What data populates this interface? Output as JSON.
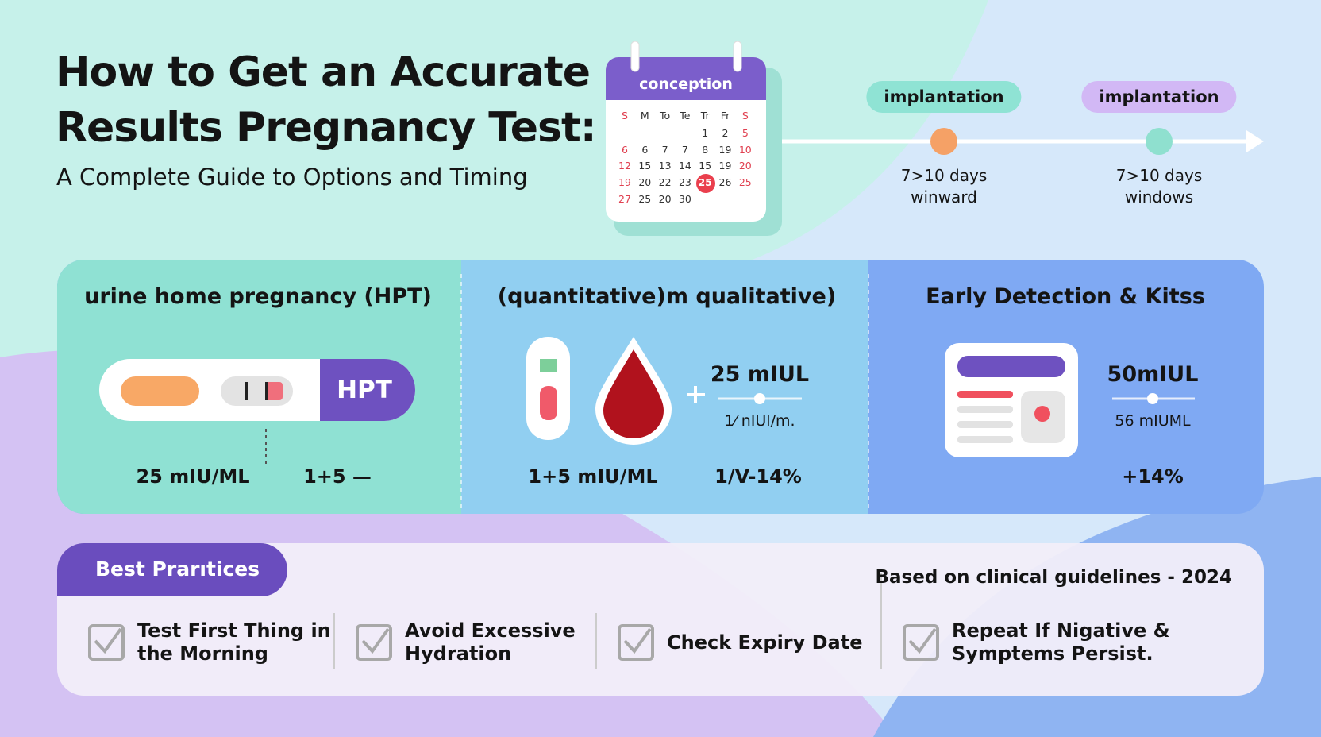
{
  "header": {
    "title_lines": [
      "How to Get an Accurate",
      "Results Pregnancy Test:"
    ],
    "subtitle": "A Complete Guide to Options and Timing"
  },
  "calendar": {
    "label": "conception",
    "weekdays": [
      "S",
      "M",
      "To",
      "Te",
      "Tr",
      "Fr",
      "S"
    ],
    "weeks": [
      [
        "1",
        "2",
        "5"
      ],
      [
        "6",
        "6",
        "7",
        "7",
        "8",
        "19",
        "10"
      ],
      [
        "12",
        "15",
        "13",
        "14",
        "15",
        "19",
        "20"
      ],
      [
        "19",
        "20",
        "22",
        "23",
        "25",
        "26",
        "25"
      ],
      [
        "27",
        "25",
        "20",
        "30"
      ]
    ]
  },
  "timeline": {
    "milestones": [
      {
        "label": "implantation",
        "note_lines": [
          "7>10 days",
          "winward"
        ]
      },
      {
        "label": "implantation",
        "note_lines": [
          "7>10 days",
          "windows"
        ]
      }
    ]
  },
  "panels": [
    {
      "title": "urine home pregnancy (HPT)",
      "strip_label": "HPT",
      "stats": [
        "25 mIU/ML",
        "1+5 —"
      ]
    },
    {
      "title": "(quantitative)m qualitative)",
      "value": "25 mIUL",
      "sub_value": "1⁄ nIUl/m.",
      "stats": [
        "1+5 mIU/ML",
        "1/V-14%"
      ]
    },
    {
      "title": "Early Detection & Kitss",
      "value": "50mIUL",
      "sub_value": "56 mIUML",
      "stats": [
        "+14%"
      ]
    }
  ],
  "best_practices": {
    "title": "Best Prarıtices",
    "source": "Based on clinical guidelines - 2024",
    "items": [
      {
        "lines": [
          "Test First Thing in",
          "the Morning"
        ]
      },
      {
        "lines": [
          "Avoid Excessive",
          "Hydration"
        ]
      },
      {
        "lines": [
          "Check Expiry Date"
        ]
      },
      {
        "lines": [
          "Repeat If Nigative &",
          "Symptems Persist."
        ]
      }
    ]
  }
}
